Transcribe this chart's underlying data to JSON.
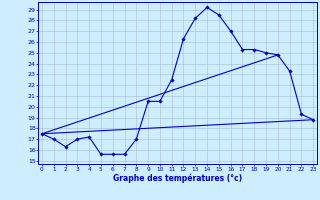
{
  "title": "Graphe des températures (°c)",
  "bg_color": "#cceeff",
  "grid_color": "#aabbcc",
  "line_color": "#0000cc",
  "x_ticks": [
    0,
    1,
    2,
    3,
    4,
    5,
    6,
    7,
    8,
    9,
    10,
    11,
    12,
    13,
    14,
    15,
    16,
    17,
    18,
    19,
    20,
    21,
    22,
    23
  ],
  "y_ticks": [
    15,
    16,
    17,
    18,
    19,
    20,
    21,
    22,
    23,
    24,
    25,
    26,
    27,
    28,
    29
  ],
  "xlim": [
    -0.3,
    23.3
  ],
  "ylim": [
    14.7,
    29.7
  ],
  "line1_x": [
    0,
    1,
    2,
    3,
    4,
    5,
    6,
    7,
    8,
    9,
    10,
    11,
    12,
    13,
    14,
    15,
    16,
    17,
    18,
    19,
    20,
    21,
    22,
    23
  ],
  "line1_y": [
    17.5,
    17.0,
    16.3,
    17.0,
    17.2,
    15.6,
    15.6,
    15.6,
    17.0,
    20.5,
    20.5,
    22.5,
    26.3,
    28.2,
    29.2,
    28.5,
    27.0,
    25.3,
    25.3,
    25.0,
    24.8,
    23.3,
    19.3,
    18.8
  ],
  "line2_x": [
    0,
    23
  ],
  "line2_y": [
    17.5,
    18.8
  ],
  "line3_x": [
    0,
    20
  ],
  "line3_y": [
    17.5,
    24.8
  ]
}
